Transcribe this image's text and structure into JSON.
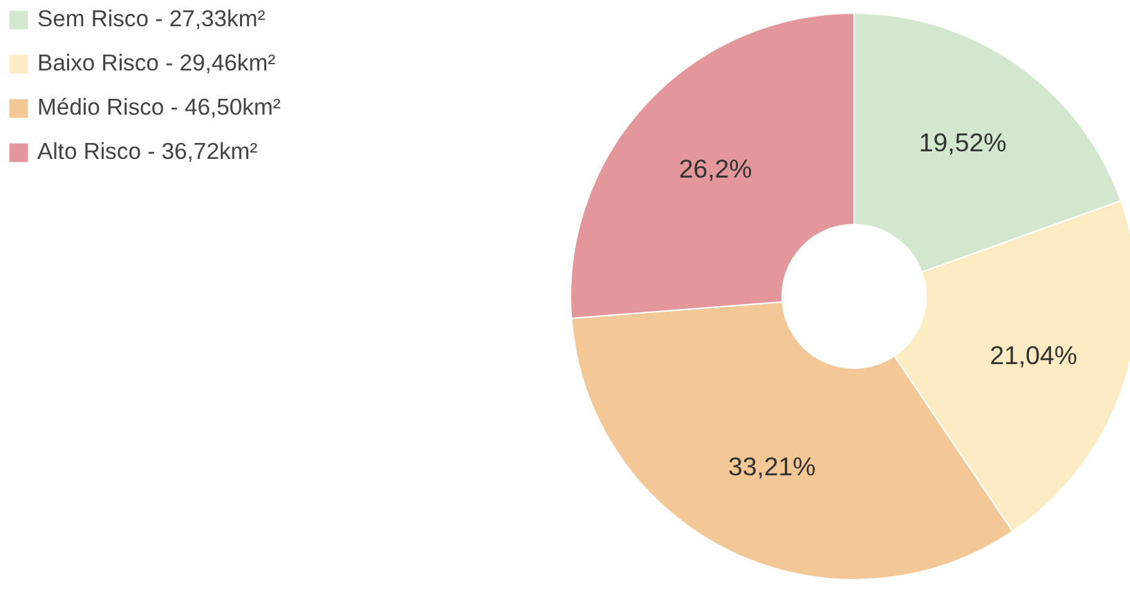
{
  "chart_data": {
    "type": "donut",
    "categories": [
      "Sem Risco - 27,33km²",
      "Baixo Risco - 29,46km²",
      "Médio Risco - 46,50km²",
      "Alto Risco - 36,72km²"
    ],
    "values": [
      19.52,
      21.04,
      33.21,
      26.23
    ],
    "colors": [
      "#d3e7cf",
      "#fdebc4",
      "#f4c796",
      "#e4979a"
    ],
    "value_labels": [
      "19,52%",
      "21,04%",
      "33,21%",
      "26,2%"
    ],
    "legend": "top left"
  }
}
